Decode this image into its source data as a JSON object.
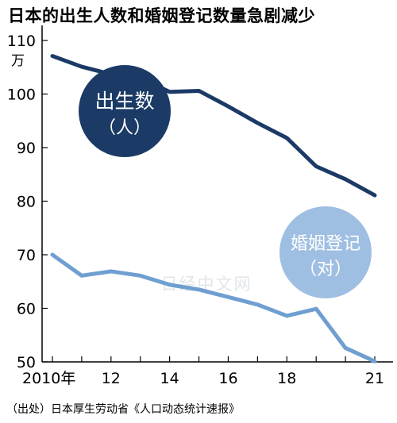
{
  "title": "日本的出生人数和婚姻登记数量急剧减少",
  "source": "（出处）日本厚生劳动省《人口动态统计速报》",
  "watermark": "日经中文网",
  "colors": {
    "births": "#1b3a66",
    "marriages": "#6f9fd1",
    "births_badge": "#1b3a66",
    "marriages_badge": "#9fbfe2"
  },
  "chart_data": {
    "type": "line",
    "title": "日本的出生人数和婚姻登记数量急剧减少",
    "unit": "万",
    "x": [
      2010,
      2011,
      2012,
      2013,
      2014,
      2015,
      2016,
      2017,
      2018,
      2019,
      2020,
      2021
    ],
    "xlim": [
      2010,
      2021
    ],
    "ylim": [
      50,
      110
    ],
    "xticks": [
      {
        "value": 2010,
        "label": "2010年"
      },
      {
        "value": 2012,
        "label": "12"
      },
      {
        "value": 2014,
        "label": "14"
      },
      {
        "value": 2016,
        "label": "16"
      },
      {
        "value": 2018,
        "label": "18"
      },
      {
        "value": 2021,
        "label": "21"
      }
    ],
    "yticks": [
      {
        "value": 110,
        "label": "110"
      },
      {
        "value": 100,
        "label": "100"
      },
      {
        "value": 90,
        "label": "90"
      },
      {
        "value": 80,
        "label": "80"
      },
      {
        "value": 70,
        "label": "70"
      },
      {
        "value": 60,
        "label": "60"
      },
      {
        "value": 50,
        "label": "50"
      }
    ],
    "grid": false,
    "series": [
      {
        "key": "births",
        "name": "出生数",
        "subname": "（人）",
        "values": [
          107.1,
          105.1,
          103.7,
          103.0,
          100.4,
          100.6,
          97.7,
          94.6,
          91.8,
          86.5,
          84.1,
          81.1
        ]
      },
      {
        "key": "marriages",
        "name": "婚姻登记",
        "subname": "（对）",
        "values": [
          70.0,
          66.1,
          66.9,
          66.1,
          64.4,
          63.5,
          62.1,
          60.7,
          58.6,
          59.9,
          52.6,
          50.1
        ]
      }
    ]
  }
}
